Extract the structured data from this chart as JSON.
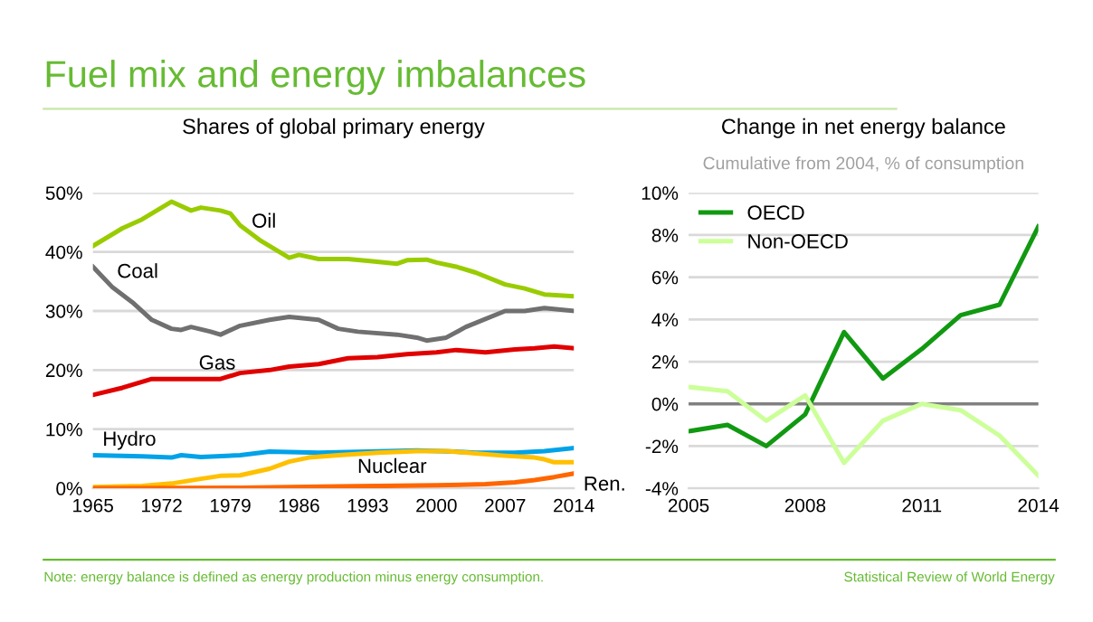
{
  "chart_data": [
    {
      "type": "line",
      "title": "Shares of global primary energy",
      "annotations": [
        "Fuel mix and energy imbalances",
        "Note: energy balance is defined as energy production minus energy consumption."
      ],
      "xlim": [
        1965,
        2014
      ],
      "xticks": [
        1965,
        1972,
        1979,
        1986,
        1993,
        2000,
        2007,
        2014
      ],
      "ylim": [
        0,
        50
      ],
      "yticks": [
        {
          "value": 0,
          "label": "0%"
        },
        {
          "value": 10,
          "label": "10%"
        },
        {
          "value": 20,
          "label": "20%"
        },
        {
          "value": 30,
          "label": "30%"
        },
        {
          "value": 40,
          "label": "40%"
        },
        {
          "value": 50,
          "label": "50%"
        }
      ],
      "grid": "y",
      "legend": false,
      "series": [
        {
          "name": "Oil",
          "color": "#99cc00",
          "x": [
            1965,
            1968,
            1970,
            1973,
            1975,
            1976,
            1978,
            1979,
            1980,
            1982,
            1985,
            1986,
            1988,
            1991,
            1993,
            1996,
            1997,
            1999,
            2000,
            2002,
            2004,
            2007,
            2009,
            2011,
            2014
          ],
          "values": [
            41,
            44,
            45.5,
            48.5,
            47,
            47.5,
            47,
            46.5,
            44.5,
            42,
            39,
            39.5,
            38.8,
            38.8,
            38.5,
            38,
            38.6,
            38.7,
            38.2,
            37.5,
            36.5,
            34.5,
            33.8,
            32.8,
            32.5
          ]
        },
        {
          "name": "Coal",
          "color": "#707070",
          "x": [
            1965,
            1967,
            1969,
            1971,
            1973,
            1974,
            1975,
            1977,
            1978,
            1980,
            1983,
            1985,
            1988,
            1990,
            1992,
            1996,
            1998,
            1999,
            2001,
            2003,
            2007,
            2009,
            2011,
            2014
          ],
          "values": [
            37.5,
            34,
            31.5,
            28.5,
            27,
            26.8,
            27.3,
            26.5,
            26,
            27.5,
            28.5,
            29,
            28.5,
            27,
            26.5,
            26,
            25.5,
            25,
            25.5,
            27.3,
            30,
            30,
            30.5,
            30
          ]
        },
        {
          "name": "Gas",
          "color": "#e10000",
          "x": [
            1965,
            1968,
            1971,
            1973,
            1975,
            1978,
            1980,
            1983,
            1985,
            1988,
            1991,
            1994,
            1997,
            2000,
            2002,
            2005,
            2008,
            2010,
            2012,
            2014
          ],
          "values": [
            15.8,
            17,
            18.5,
            18.5,
            18.5,
            18.5,
            19.5,
            20,
            20.6,
            21,
            22,
            22.2,
            22.7,
            23,
            23.4,
            23,
            23.5,
            23.7,
            24,
            23.7
          ]
        },
        {
          "name": "Hydro",
          "color": "#00a2e8",
          "x": [
            1965,
            1970,
            1973,
            1974,
            1976,
            1980,
            1983,
            1988,
            1993,
            1998,
            2002,
            2004,
            2008,
            2011,
            2014
          ],
          "values": [
            5.6,
            5.4,
            5.2,
            5.6,
            5.3,
            5.6,
            6.2,
            6,
            6.2,
            6.4,
            6.2,
            6,
            6,
            6.3,
            6.8
          ]
        },
        {
          "name": "Nuclear",
          "color": "#ffc000",
          "x": [
            1965,
            1970,
            1973,
            1976,
            1978,
            1980,
            1983,
            1985,
            1987,
            1990,
            1994,
            1998,
            2001,
            2004,
            2007,
            2010,
            2011,
            2012,
            2014
          ],
          "values": [
            0.2,
            0.4,
            0.8,
            1.6,
            2.1,
            2.2,
            3.3,
            4.5,
            5.2,
            5.6,
            6,
            6.3,
            6.3,
            5.9,
            5.5,
            5.2,
            4.9,
            4.4,
            4.4
          ]
        },
        {
          "name": "Ren.",
          "color": "#ff6600",
          "x": [
            1965,
            1980,
            1990,
            2000,
            2005,
            2008,
            2010,
            2012,
            2014
          ],
          "values": [
            0,
            0.1,
            0.3,
            0.5,
            0.7,
            1.0,
            1.4,
            1.9,
            2.5
          ]
        }
      ]
    },
    {
      "type": "line",
      "title": "Change in net energy balance",
      "subtitle": "Cumulative from 2004, % of consumption",
      "annotations": [
        "Statistical Review of World Energy"
      ],
      "xlim": [
        2005,
        2014
      ],
      "xticks": [
        2005,
        2008,
        2011,
        2014
      ],
      "ylim": [
        -4,
        10
      ],
      "yticks": [
        {
          "value": -4,
          "label": "-4%"
        },
        {
          "value": -2,
          "label": "-2%"
        },
        {
          "value": 0,
          "label": "0%"
        },
        {
          "value": 2,
          "label": "2%"
        },
        {
          "value": 4,
          "label": "4%"
        },
        {
          "value": 6,
          "label": "6%"
        },
        {
          "value": 8,
          "label": "8%"
        },
        {
          "value": 10,
          "label": "10%"
        }
      ],
      "grid": "y",
      "legend": "top left",
      "ref_lines": [
        {
          "axis": "y",
          "value": 0,
          "color": "#808080"
        }
      ],
      "series": [
        {
          "name": "OECD",
          "color": "#119911",
          "x": [
            2005,
            2006,
            2007,
            2008,
            2009,
            2010,
            2011,
            2012,
            2013,
            2014
          ],
          "values": [
            -1.3,
            -1.0,
            -2.0,
            -0.5,
            3.4,
            1.2,
            2.6,
            4.2,
            4.7,
            8.4
          ]
        },
        {
          "name": "Non-OECD",
          "color": "#ccff99",
          "x": [
            2005,
            2006,
            2007,
            2008,
            2009,
            2010,
            2011,
            2012,
            2013,
            2014
          ],
          "values": [
            0.8,
            0.6,
            -0.8,
            0.4,
            -2.8,
            -0.8,
            0,
            -0.3,
            -1.5,
            -3.4
          ]
        }
      ]
    }
  ]
}
